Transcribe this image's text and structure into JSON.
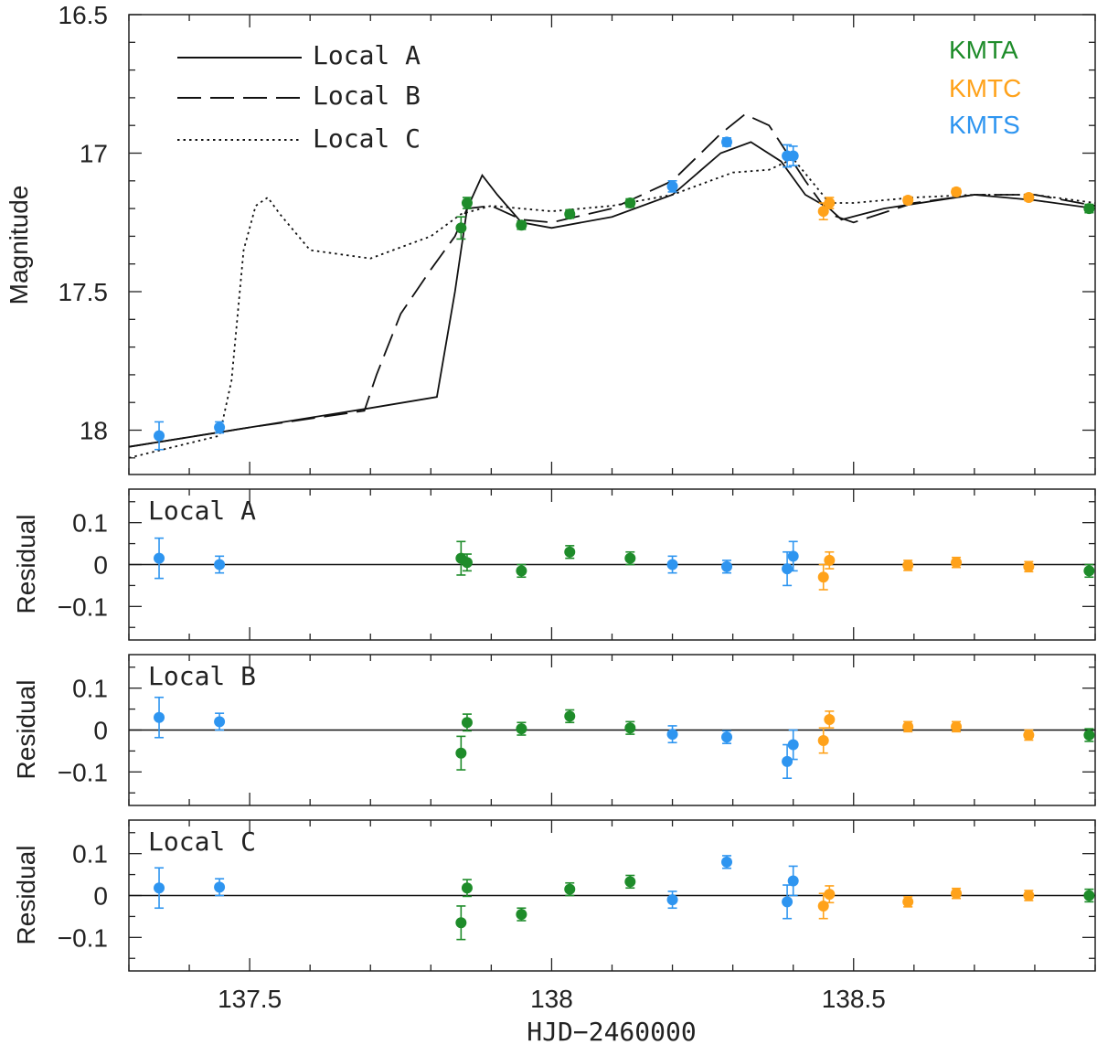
{
  "colors": {
    "KMTA": "#1e8c2a",
    "KMTC": "#ffa21a",
    "KMTS": "#2e95f0",
    "line": "#111111"
  },
  "observatories": [
    "KMTA",
    "KMTC",
    "KMTS"
  ],
  "chart_data": [
    {
      "type": "line",
      "panel": "main",
      "ylabel": "Magnitude",
      "xlim": [
        137.3,
        138.9
      ],
      "ylim": [
        18.16,
        16.5
      ],
      "y_inverted": true,
      "yticks": [
        16.5,
        17,
        17.5,
        18
      ],
      "ytick_labels": [
        "16.5",
        "17",
        "17.5",
        "18"
      ],
      "xticks": [
        137.5,
        138,
        138.5
      ],
      "legend": {
        "position": "top-left",
        "entries": [
          "Local A",
          "Local B",
          "Local C"
        ]
      },
      "models": [
        {
          "name": "Local A",
          "style": "solid",
          "x": [
            137.3,
            137.5,
            137.7,
            137.81,
            137.84,
            137.86,
            137.885,
            137.91,
            137.95,
            138.0,
            138.1,
            138.2,
            138.28,
            138.33,
            138.38,
            138.42,
            138.46,
            138.48,
            138.55,
            138.7,
            138.8,
            138.9
          ],
          "y": [
            18.06,
            17.99,
            17.92,
            17.88,
            17.5,
            17.2,
            17.08,
            17.15,
            17.25,
            17.27,
            17.23,
            17.15,
            17.0,
            16.96,
            17.03,
            17.15,
            17.2,
            17.24,
            17.2,
            17.15,
            17.17,
            17.2
          ]
        },
        {
          "name": "Local B",
          "style": "dashed",
          "x": [
            137.3,
            137.5,
            137.69,
            137.71,
            137.75,
            137.8,
            137.84,
            137.86,
            137.9,
            137.95,
            138.0,
            138.1,
            138.2,
            138.28,
            138.32,
            138.36,
            138.42,
            138.46,
            138.5,
            138.6,
            138.7,
            138.8,
            138.9
          ],
          "y": [
            18.06,
            17.99,
            17.93,
            17.8,
            17.58,
            17.42,
            17.3,
            17.2,
            17.19,
            17.24,
            17.25,
            17.2,
            17.1,
            16.93,
            16.86,
            16.9,
            17.1,
            17.22,
            17.25,
            17.18,
            17.15,
            17.15,
            17.19
          ]
        },
        {
          "name": "Local C",
          "style": "dotted",
          "x": [
            137.3,
            137.45,
            137.47,
            137.49,
            137.51,
            137.53,
            137.55,
            137.6,
            137.7,
            137.8,
            137.85,
            137.9,
            138.0,
            138.1,
            138.2,
            138.3,
            138.36,
            138.4,
            138.43,
            138.46,
            138.5,
            138.6,
            138.7,
            138.8,
            138.9
          ],
          "y": [
            18.1,
            18.02,
            17.82,
            17.35,
            17.19,
            17.16,
            17.22,
            17.35,
            17.38,
            17.3,
            17.22,
            17.19,
            17.21,
            17.19,
            17.15,
            17.07,
            17.06,
            17.02,
            17.1,
            17.18,
            17.18,
            17.16,
            17.15,
            17.15,
            17.18
          ]
        }
      ],
      "observations": [
        {
          "obs": "KMTS",
          "x": 137.35,
          "y": 18.02,
          "err": 0.05
        },
        {
          "obs": "KMTS",
          "x": 137.45,
          "y": 17.99,
          "err": 0.02
        },
        {
          "obs": "KMTA",
          "x": 137.85,
          "y": 17.27,
          "err": 0.04
        },
        {
          "obs": "KMTA",
          "x": 137.86,
          "y": 17.18,
          "err": 0.02
        },
        {
          "obs": "KMTA",
          "x": 137.95,
          "y": 17.26,
          "err": 0.015
        },
        {
          "obs": "KMTA",
          "x": 138.03,
          "y": 17.22,
          "err": 0.015
        },
        {
          "obs": "KMTA",
          "x": 138.13,
          "y": 17.18,
          "err": 0.015
        },
        {
          "obs": "KMTS",
          "x": 138.2,
          "y": 17.12,
          "err": 0.02
        },
        {
          "obs": "KMTS",
          "x": 138.29,
          "y": 16.96,
          "err": 0.015
        },
        {
          "obs": "KMTS",
          "x": 138.39,
          "y": 17.01,
          "err": 0.04
        },
        {
          "obs": "KMTS",
          "x": 138.4,
          "y": 17.01,
          "err": 0.035
        },
        {
          "obs": "KMTC",
          "x": 138.45,
          "y": 17.21,
          "err": 0.03
        },
        {
          "obs": "KMTC",
          "x": 138.46,
          "y": 17.18,
          "err": 0.02
        },
        {
          "obs": "KMTC",
          "x": 138.59,
          "y": 17.17,
          "err": 0.012
        },
        {
          "obs": "KMTC",
          "x": 138.67,
          "y": 17.14,
          "err": 0.012
        },
        {
          "obs": "KMTC",
          "x": 138.79,
          "y": 17.16,
          "err": 0.012
        },
        {
          "obs": "KMTA",
          "x": 138.89,
          "y": 17.2,
          "err": 0.015
        }
      ]
    },
    {
      "type": "scatter",
      "panel": "residual",
      "label": "Local A",
      "ylabel": "Residual",
      "xlim": [
        137.3,
        138.9
      ],
      "ylim": [
        -0.18,
        0.18
      ],
      "yticks": [
        0.1,
        0,
        -0.1
      ],
      "ytick_labels": [
        "0.1",
        "0",
        "−0.1"
      ],
      "zero_line": true,
      "x": [
        137.35,
        137.45,
        137.85,
        137.86,
        137.95,
        138.03,
        138.13,
        138.2,
        138.29,
        138.39,
        138.4,
        138.45,
        138.46,
        138.59,
        138.67,
        138.79,
        138.89
      ],
      "obs": [
        "KMTS",
        "KMTS",
        "KMTA",
        "KMTA",
        "KMTA",
        "KMTA",
        "KMTA",
        "KMTS",
        "KMTS",
        "KMTS",
        "KMTS",
        "KMTC",
        "KMTC",
        "KMTC",
        "KMTC",
        "KMTC",
        "KMTA"
      ],
      "y": [
        0.015,
        0.0,
        0.015,
        0.005,
        -0.015,
        0.03,
        0.015,
        0.0,
        -0.005,
        -0.01,
        0.02,
        -0.03,
        0.01,
        -0.002,
        0.005,
        -0.005,
        -0.015
      ],
      "err": [
        0.048,
        0.02,
        0.04,
        0.02,
        0.015,
        0.015,
        0.015,
        0.02,
        0.015,
        0.04,
        0.035,
        0.03,
        0.02,
        0.012,
        0.012,
        0.012,
        0.015
      ]
    },
    {
      "type": "scatter",
      "panel": "residual",
      "label": "Local B",
      "ylabel": "Residual",
      "xlim": [
        137.3,
        138.9
      ],
      "ylim": [
        -0.18,
        0.18
      ],
      "yticks": [
        0.1,
        0,
        -0.1
      ],
      "ytick_labels": [
        "0.1",
        "0",
        "−0.1"
      ],
      "zero_line": true,
      "x": [
        137.35,
        137.45,
        137.85,
        137.86,
        137.95,
        138.03,
        138.13,
        138.2,
        138.29,
        138.39,
        138.4,
        138.45,
        138.46,
        138.59,
        138.67,
        138.79,
        138.89
      ],
      "obs": [
        "KMTS",
        "KMTS",
        "KMTA",
        "KMTA",
        "KMTA",
        "KMTA",
        "KMTA",
        "KMTS",
        "KMTS",
        "KMTS",
        "KMTS",
        "KMTC",
        "KMTC",
        "KMTC",
        "KMTC",
        "KMTC",
        "KMTA"
      ],
      "y": [
        0.03,
        0.02,
        -0.055,
        0.018,
        0.003,
        0.033,
        0.005,
        -0.01,
        -0.017,
        -0.075,
        -0.035,
        -0.025,
        0.025,
        0.008,
        0.008,
        -0.012,
        -0.012
      ],
      "err": [
        0.048,
        0.02,
        0.04,
        0.02,
        0.015,
        0.015,
        0.015,
        0.02,
        0.015,
        0.04,
        0.035,
        0.03,
        0.02,
        0.012,
        0.012,
        0.012,
        0.015
      ]
    },
    {
      "type": "scatter",
      "panel": "residual",
      "label": "Local C",
      "ylabel": "Residual",
      "xlabel": "HJD−2460000",
      "xticks": [
        137.5,
        138,
        138.5
      ],
      "xtick_labels": [
        "137.5",
        "138",
        "138.5"
      ],
      "xlim": [
        137.3,
        138.9
      ],
      "ylim": [
        -0.18,
        0.18
      ],
      "yticks": [
        0.1,
        0,
        -0.1
      ],
      "ytick_labels": [
        "0.1",
        "0",
        "−0.1"
      ],
      "zero_line": true,
      "x": [
        137.35,
        137.45,
        137.85,
        137.86,
        137.95,
        138.03,
        138.13,
        138.2,
        138.29,
        138.39,
        138.4,
        138.45,
        138.46,
        138.59,
        138.67,
        138.79,
        138.89
      ],
      "obs": [
        "KMTS",
        "KMTS",
        "KMTA",
        "KMTA",
        "KMTA",
        "KMTA",
        "KMTA",
        "KMTS",
        "KMTS",
        "KMTS",
        "KMTS",
        "KMTC",
        "KMTC",
        "KMTC",
        "KMTC",
        "KMTC",
        "KMTA"
      ],
      "y": [
        0.018,
        0.02,
        -0.065,
        0.018,
        -0.045,
        0.015,
        0.033,
        -0.01,
        0.08,
        -0.015,
        0.035,
        -0.025,
        0.003,
        -0.015,
        0.005,
        0.0,
        0.0
      ],
      "err": [
        0.048,
        0.02,
        0.04,
        0.02,
        0.015,
        0.015,
        0.015,
        0.02,
        0.015,
        0.04,
        0.035,
        0.03,
        0.02,
        0.012,
        0.012,
        0.012,
        0.015
      ]
    }
  ]
}
